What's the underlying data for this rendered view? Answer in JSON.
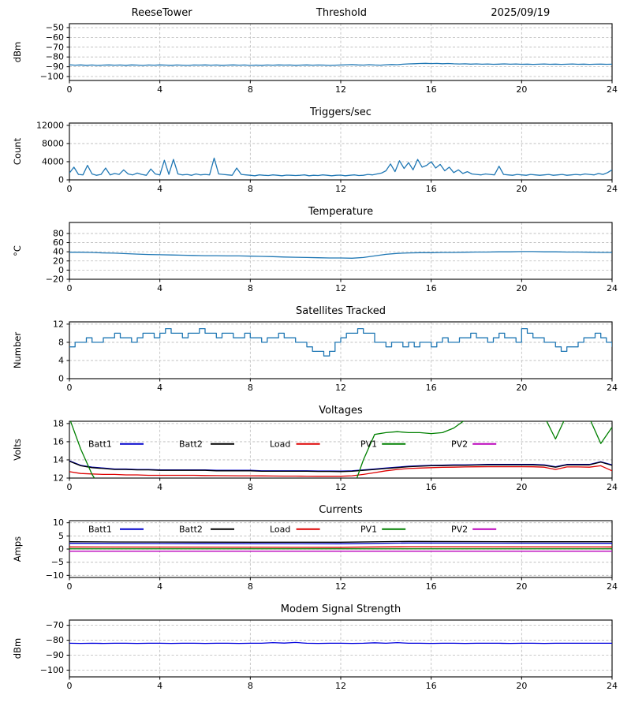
{
  "chart_data": [
    {
      "type": "line",
      "titles": [
        "ReeseTower",
        "Threshold",
        "2025/09/19"
      ],
      "ylabel": "dBm",
      "xlim": [
        0,
        24
      ],
      "xticks": [
        0,
        4,
        8,
        12,
        16,
        20,
        24
      ],
      "ylim": [
        -104,
        -46
      ],
      "yticks": [
        -100,
        -90,
        -80,
        -70,
        -60,
        -50
      ],
      "grid": true,
      "legend": null,
      "series": [
        {
          "name": "threshold",
          "color": "#1f77b4",
          "x0": 0,
          "dx": 0.25,
          "y": [
            -88.0,
            -88.4,
            -88.1,
            -88.5,
            -88.2,
            -88.6,
            -88.3,
            -88.1,
            -88.4,
            -88.2,
            -88.5,
            -88.1,
            -88.3,
            -88.6,
            -88.2,
            -88.4,
            -88.1,
            -88.3,
            -88.5,
            -88.2,
            -88.4,
            -88.6,
            -88.2,
            -88.3,
            -88.1,
            -88.4,
            -88.2,
            -88.5,
            -88.3,
            -88.1,
            -88.4,
            -88.2,
            -88.6,
            -88.3,
            -88.5,
            -88.2,
            -88.4,
            -88.1,
            -88.3,
            -88.2,
            -88.5,
            -88.3,
            -88.1,
            -88.4,
            -88.2,
            -88.3,
            -88.6,
            -88.4,
            -88.2,
            -88.0,
            -87.8,
            -88.1,
            -88.3,
            -87.9,
            -88.2,
            -88.4,
            -88.0,
            -87.7,
            -87.9,
            -87.4,
            -87.1,
            -86.9,
            -86.7,
            -86.5,
            -86.8,
            -86.6,
            -86.9,
            -86.7,
            -87.0,
            -87.2,
            -87.0,
            -87.3,
            -87.1,
            -87.4,
            -87.2,
            -87.5,
            -87.3,
            -87.1,
            -87.4,
            -87.2,
            -87.5,
            -87.3,
            -87.6,
            -87.4,
            -87.2,
            -87.5,
            -87.3,
            -87.6,
            -87.4,
            -87.2,
            -87.5,
            -87.3,
            -87.6,
            -87.4,
            -87.3,
            -87.5,
            -87.4
          ]
        }
      ]
    },
    {
      "type": "line",
      "titles": [
        "Triggers/sec"
      ],
      "ylabel": "Count",
      "xlim": [
        0,
        24
      ],
      "xticks": [
        0,
        4,
        8,
        12,
        16,
        20,
        24
      ],
      "ylim": [
        0,
        12500
      ],
      "yticks": [
        0,
        4000,
        8000,
        12000
      ],
      "grid": true,
      "legend": null,
      "series": [
        {
          "name": "triggers",
          "color": "#1f77b4",
          "x0": 0,
          "dx": 0.2,
          "y": [
            1500,
            2800,
            1200,
            1100,
            3200,
            1300,
            1000,
            1200,
            2600,
            1100,
            1400,
            1200,
            2200,
            1300,
            1100,
            1500,
            1200,
            1000,
            2400,
            1300,
            1100,
            4300,
            1200,
            4500,
            1300,
            1100,
            1200,
            1000,
            1300,
            1100,
            1200,
            1100,
            4800,
            1300,
            1200,
            1100,
            1000,
            2600,
            1200,
            1100,
            1000,
            900,
            1100,
            1000,
            950,
            1100,
            1000,
            900,
            1050,
            1000,
            950,
            1000,
            1100,
            900,
            1000,
            950,
            1100,
            1000,
            900,
            1000,
            1050,
            900,
            1000,
            1100,
            950,
            1000,
            1200,
            1100,
            1300,
            1500,
            2000,
            3500,
            1800,
            4200,
            2500,
            3800,
            2200,
            4500,
            2800,
            3200,
            4000,
            2600,
            3400,
            2000,
            2800,
            1600,
            2200,
            1400,
            1800,
            1300,
            1200,
            1100,
            1300,
            1200,
            1100,
            3000,
            1200,
            1100,
            1000,
            1200,
            1100,
            1000,
            1200,
            1100,
            1000,
            1100,
            1200,
            1000,
            1100,
            1200,
            1000,
            1100,
            1200,
            1100,
            1300,
            1200,
            1100,
            1400,
            1200,
            1600,
            2200
          ]
        }
      ]
    },
    {
      "type": "line",
      "titles": [
        "Temperature"
      ],
      "ylabel": "°C",
      "xlim": [
        0,
        24
      ],
      "xticks": [
        0,
        4,
        8,
        12,
        16,
        20,
        24
      ],
      "ylim": [
        -20,
        104
      ],
      "yticks": [
        -20,
        0,
        20,
        40,
        60,
        80
      ],
      "grid": true,
      "legend": null,
      "series": [
        {
          "name": "temperature",
          "color": "#1f77b4",
          "x0": 0,
          "dx": 0.5,
          "y": [
            39,
            39,
            38.5,
            37.5,
            37,
            36,
            35,
            34,
            33.5,
            33,
            32.5,
            32,
            31.5,
            31.5,
            31,
            31,
            30.5,
            30,
            29.5,
            28.5,
            28,
            27.5,
            27,
            26.5,
            26.5,
            26,
            27.5,
            31,
            34.5,
            36.5,
            37.5,
            38,
            38,
            38.5,
            38.5,
            39,
            39.5,
            39.5,
            40,
            40,
            40.5,
            40.5,
            40,
            40,
            39.5,
            39.5,
            39,
            38.5,
            38.5
          ]
        }
      ]
    },
    {
      "type": "line",
      "titles": [
        "Satellites Tracked"
      ],
      "ylabel": "Number",
      "xlim": [
        0,
        24
      ],
      "xticks": [
        0,
        4,
        8,
        12,
        16,
        20,
        24
      ],
      "ylim": [
        0,
        12.5
      ],
      "yticks": [
        0,
        4,
        8,
        12
      ],
      "grid": true,
      "legend": null,
      "series": [
        {
          "name": "satellites",
          "color": "#1f77b4",
          "step": true,
          "x0": 0,
          "dx": 0.25,
          "y": [
            7,
            8,
            8,
            9,
            8,
            8,
            9,
            9,
            10,
            9,
            9,
            8,
            9,
            10,
            10,
            9,
            10,
            11,
            10,
            10,
            9,
            10,
            10,
            11,
            10,
            10,
            9,
            10,
            10,
            9,
            9,
            10,
            9,
            9,
            8,
            9,
            9,
            10,
            9,
            9,
            8,
            8,
            7,
            6,
            6,
            5,
            6,
            8,
            9,
            10,
            10,
            11,
            10,
            10,
            8,
            8,
            7,
            8,
            8,
            7,
            8,
            7,
            8,
            8,
            7,
            8,
            9,
            8,
            8,
            9,
            9,
            10,
            9,
            9,
            8,
            9,
            10,
            9,
            9,
            8,
            11,
            10,
            9,
            9,
            8,
            8,
            7,
            6,
            7,
            7,
            8,
            9,
            9,
            10,
            9,
            8,
            7
          ]
        }
      ]
    },
    {
      "type": "line",
      "titles": [
        "Voltages"
      ],
      "ylabel": "Volts",
      "xlim": [
        0,
        24
      ],
      "xticks": [
        0,
        4,
        8,
        12,
        16,
        20,
        24
      ],
      "ylim": [
        12,
        18.25
      ],
      "yticks": [
        12,
        14,
        16,
        18
      ],
      "grid": true,
      "legend": {
        "y_frac": 0.4,
        "items": [
          {
            "label": "Batt1",
            "color": "#0000cc"
          },
          {
            "label": "Batt2",
            "color": "#000000"
          },
          {
            "label": "Load",
            "color": "#dd0000"
          },
          {
            "label": "PV1",
            "color": "#008000"
          },
          {
            "label": "PV2",
            "color": "#bb00bb"
          }
        ]
      },
      "series": [
        {
          "name": "Batt1",
          "color": "#0000cc",
          "x0": 0,
          "dx": 0.5,
          "y": [
            13.9,
            13.4,
            13.2,
            13.1,
            13.0,
            13.0,
            12.95,
            12.95,
            12.9,
            12.9,
            12.9,
            12.9,
            12.9,
            12.85,
            12.85,
            12.85,
            12.85,
            12.8,
            12.8,
            12.8,
            12.8,
            12.8,
            12.78,
            12.78,
            12.76,
            12.8,
            12.9,
            13.0,
            13.1,
            13.2,
            13.3,
            13.35,
            13.4,
            13.42,
            13.45,
            13.45,
            13.48,
            13.5,
            13.5,
            13.5,
            13.5,
            13.5,
            13.45,
            13.25,
            13.5,
            13.5,
            13.5,
            13.8,
            13.45
          ]
        },
        {
          "name": "Batt2",
          "color": "#000000",
          "x0": 0,
          "dx": 0.5,
          "y": [
            13.85,
            13.35,
            13.15,
            13.05,
            12.95,
            12.95,
            12.9,
            12.9,
            12.85,
            12.85,
            12.85,
            12.85,
            12.85,
            12.8,
            12.8,
            12.8,
            12.8,
            12.75,
            12.75,
            12.75,
            12.75,
            12.75,
            12.73,
            12.73,
            12.71,
            12.75,
            12.85,
            12.95,
            13.05,
            13.15,
            13.25,
            13.3,
            13.35,
            13.37,
            13.4,
            13.4,
            13.43,
            13.45,
            13.45,
            13.45,
            13.45,
            13.45,
            13.4,
            13.2,
            13.45,
            13.45,
            13.45,
            13.75,
            13.4
          ]
        },
        {
          "name": "Load",
          "color": "#dd0000",
          "x0": 0,
          "dx": 0.5,
          "y": [
            12.7,
            12.5,
            12.45,
            12.4,
            12.4,
            12.35,
            12.35,
            12.3,
            12.3,
            12.3,
            12.3,
            12.3,
            12.28,
            12.27,
            12.26,
            12.25,
            12.25,
            12.24,
            12.23,
            12.22,
            12.22,
            12.21,
            12.2,
            12.2,
            12.2,
            12.25,
            12.4,
            12.6,
            12.8,
            12.95,
            13.05,
            13.1,
            13.15,
            13.18,
            13.2,
            13.22,
            13.24,
            13.25,
            13.25,
            13.25,
            13.25,
            13.24,
            13.2,
            12.95,
            13.22,
            13.22,
            13.2,
            13.35,
            12.8
          ]
        },
        {
          "name": "PV1",
          "color": "#008000",
          "x0": 0,
          "dx": 0.5,
          "y": [
            18.6,
            15.2,
            12.4,
            10.5,
            9,
            9,
            9,
            9,
            9,
            9,
            9,
            9,
            9,
            9,
            9,
            9,
            9,
            9,
            9,
            9,
            9,
            9,
            9,
            9,
            9,
            10.5,
            14,
            16.8,
            17,
            17.1,
            17,
            17,
            16.9,
            17,
            17.5,
            18.4,
            19,
            19,
            19,
            19,
            19,
            19,
            18.8,
            16.3,
            19,
            19,
            18.6,
            15.8,
            17.6
          ]
        },
        {
          "name": "PV2",
          "color": "#bb00bb",
          "points": [
            [
              0,
              0
            ],
            [
              24,
              0
            ]
          ]
        }
      ]
    },
    {
      "type": "line",
      "titles": [
        "Currents"
      ],
      "ylabel": "Amps",
      "xlim": [
        0,
        24
      ],
      "xticks": [
        0,
        4,
        8,
        12,
        16,
        20,
        24
      ],
      "ylim": [
        -10.8,
        10.8
      ],
      "yticks": [
        -10,
        -5,
        0,
        5,
        10
      ],
      "grid": true,
      "legend": {
        "y_frac": 0.15,
        "items": [
          {
            "label": "Batt1",
            "color": "#0000cc"
          },
          {
            "label": "Batt2",
            "color": "#000000"
          },
          {
            "label": "Load",
            "color": "#dd0000"
          },
          {
            "label": "PV1",
            "color": "#008000"
          },
          {
            "label": "PV2",
            "color": "#bb00bb"
          }
        ]
      },
      "series": [
        {
          "name": "Batt2",
          "color": "#000000",
          "points": [
            [
              0,
              2.8
            ],
            [
              2,
              2.7
            ],
            [
              8,
              2.6
            ],
            [
              12,
              2.6
            ],
            [
              15,
              2.9
            ],
            [
              20,
              2.8
            ],
            [
              24,
              2.8
            ]
          ]
        },
        {
          "name": "Batt1",
          "color": "#0000cc",
          "points": [
            [
              0,
              2.2
            ],
            [
              4,
              2.1
            ],
            [
              12,
              2.0
            ],
            [
              15,
              2.3
            ],
            [
              24,
              2.2
            ]
          ]
        },
        {
          "name": "Load",
          "color": "#dd0000",
          "points": [
            [
              0,
              0.8
            ],
            [
              12,
              0.7
            ],
            [
              15,
              0.9
            ],
            [
              24,
              0.8
            ]
          ]
        },
        {
          "name": "PV1",
          "color": "#008000",
          "points": [
            [
              0,
              0.1
            ],
            [
              24,
              0.1
            ]
          ]
        },
        {
          "name": "PV2",
          "color": "#bb00bb",
          "points": [
            [
              0,
              -0.8
            ],
            [
              24,
              -0.8
            ]
          ]
        }
      ]
    },
    {
      "type": "line",
      "titles": [
        "Modem Signal Strength"
      ],
      "ylabel": "dBm",
      "xlim": [
        0,
        24
      ],
      "xticks": [
        0,
        4,
        8,
        12,
        16,
        20,
        24
      ],
      "ylim": [
        -104.5,
        -66.5
      ],
      "yticks": [
        -100,
        -90,
        -80,
        -70
      ],
      "grid": true,
      "legend": null,
      "series": [
        {
          "name": "modem",
          "color": "#0000dd",
          "x0": 0,
          "dx": 0.5,
          "y": [
            -82,
            -82.1,
            -82,
            -82.1,
            -82,
            -82,
            -82.1,
            -82,
            -82,
            -82.1,
            -82,
            -82,
            -82.1,
            -82,
            -82,
            -82.1,
            -82,
            -82,
            -81.6,
            -81.9,
            -81.5,
            -82,
            -82.1,
            -82,
            -82,
            -82.1,
            -82,
            -81.7,
            -82,
            -81.6,
            -82,
            -82,
            -82.1,
            -82,
            -82,
            -82.1,
            -82,
            -82,
            -82,
            -82.1,
            -82,
            -82,
            -82.1,
            -82,
            -82,
            -82,
            -82,
            -82,
            -82
          ]
        }
      ]
    }
  ]
}
